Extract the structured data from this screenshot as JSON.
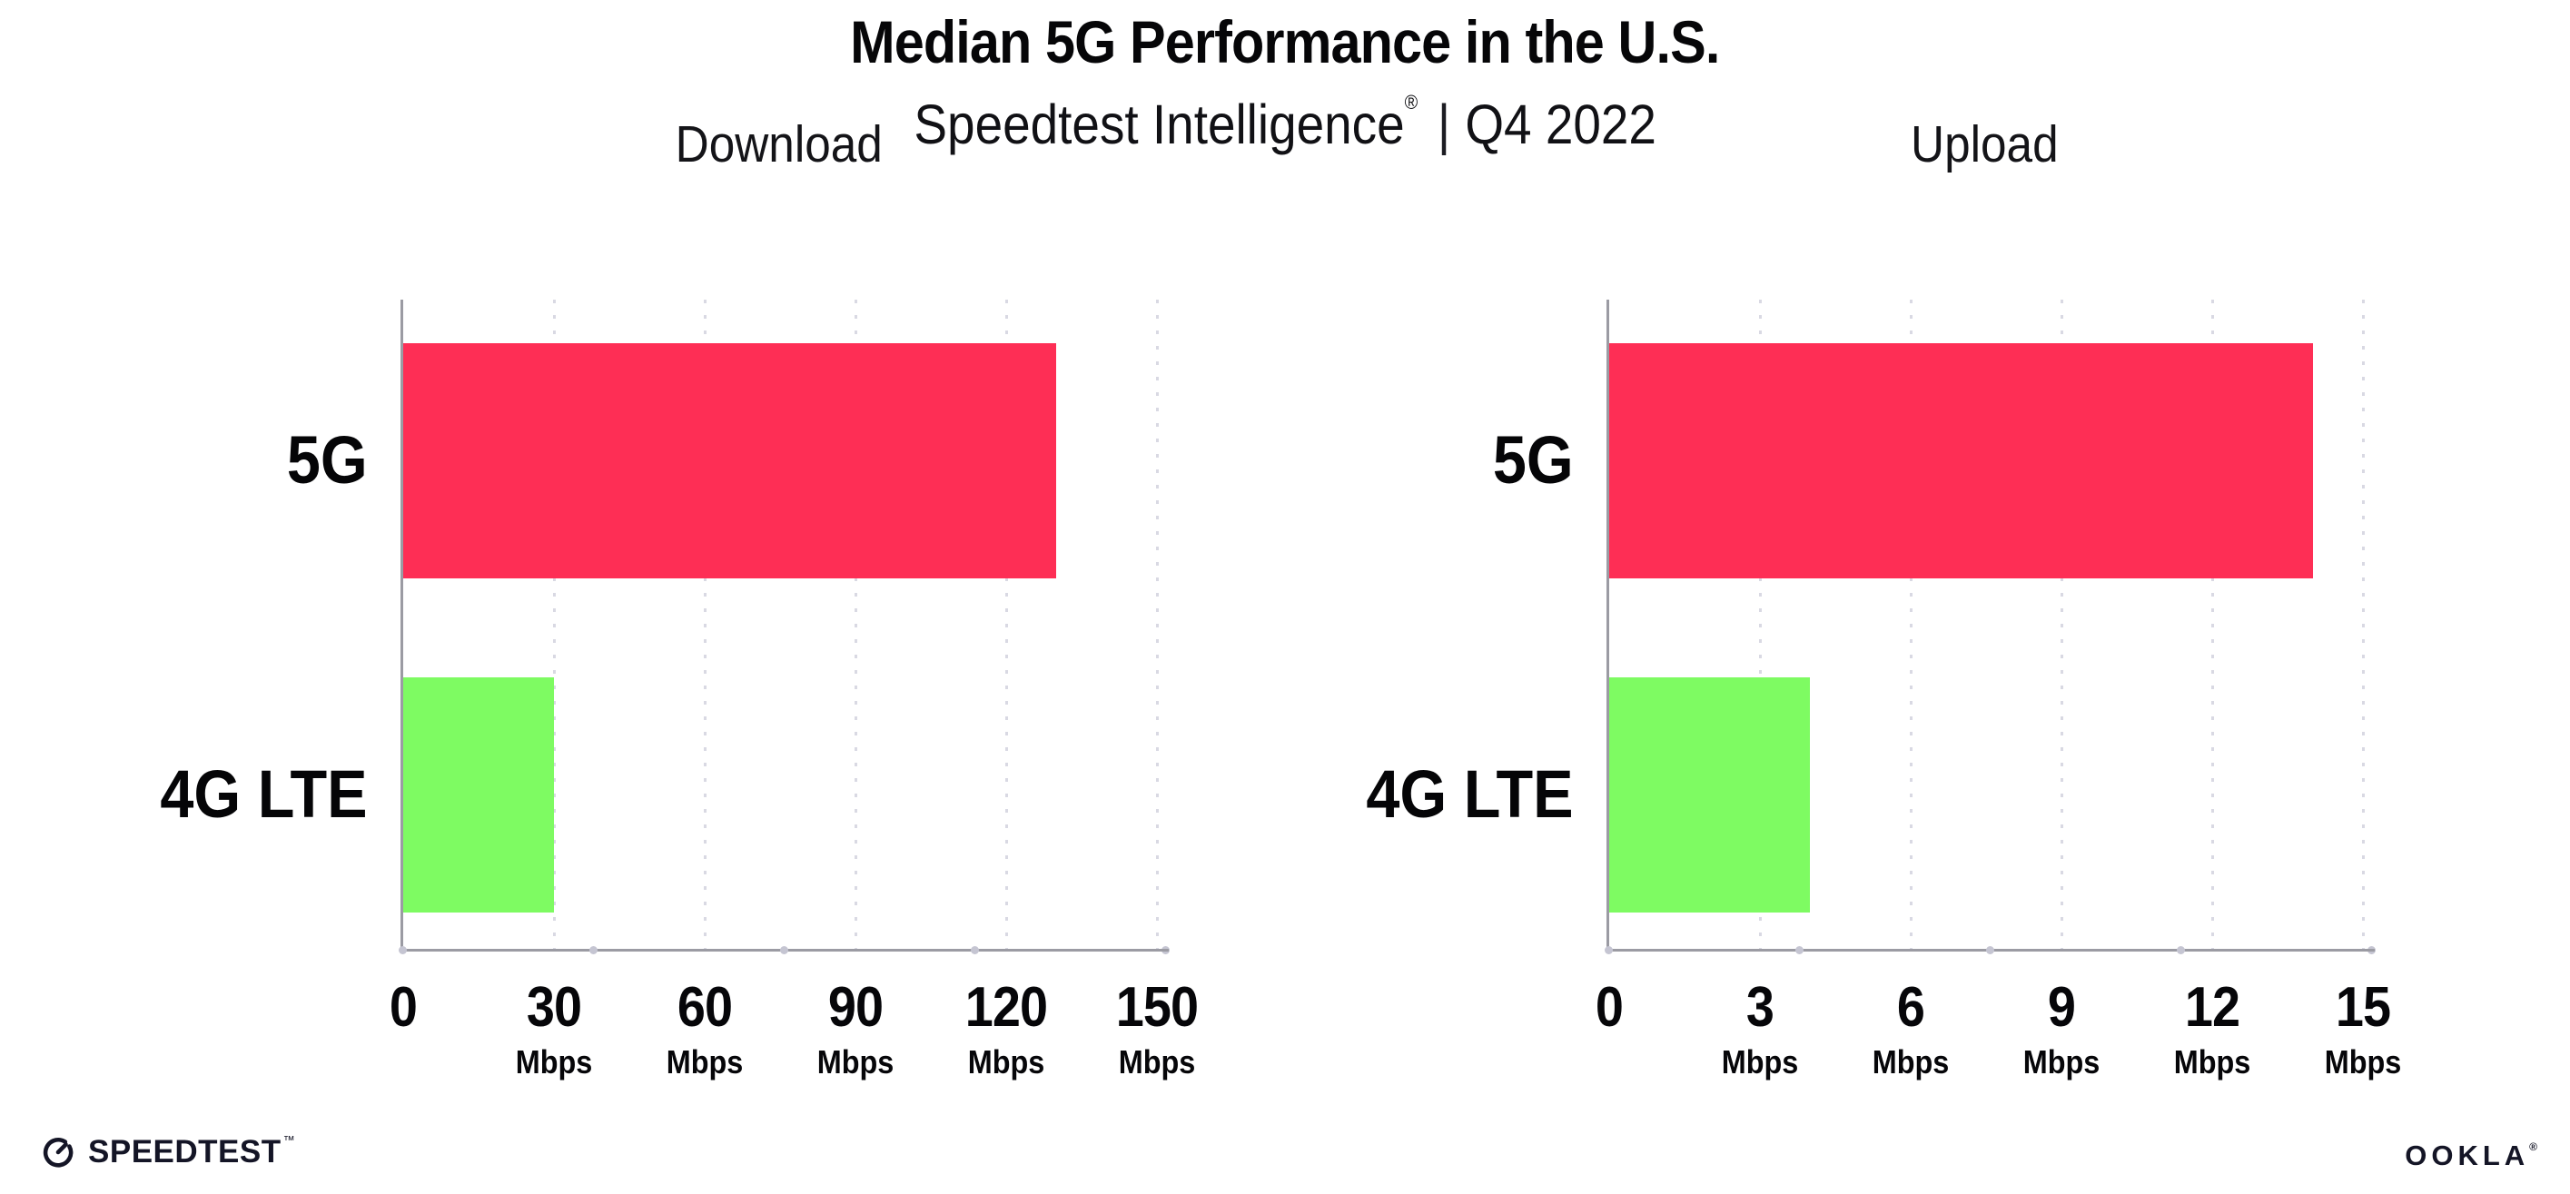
{
  "header": {
    "title": "Median 5G Performance in the U.S.",
    "subtitle": {
      "brand": "Speedtest Intelligence",
      "registered_mark": "®",
      "separator": "|",
      "period": "Q4 2022"
    }
  },
  "chart_data": [
    {
      "type": "bar",
      "orientation": "horizontal",
      "title": "Download",
      "categories": [
        "5G",
        "4G LTE"
      ],
      "values": [
        130,
        30
      ],
      "unit": "Mbps",
      "xlim": [
        0,
        150
      ],
      "xticks": [
        0,
        30,
        60,
        90,
        120,
        150
      ],
      "series_colors": [
        "#fe2e55",
        "#7efb62"
      ],
      "grid": "vertical-dotted",
      "legend_position": "none"
    },
    {
      "type": "bar",
      "orientation": "horizontal",
      "title": "Upload",
      "categories": [
        "5G",
        "4G LTE"
      ],
      "values": [
        14,
        4
      ],
      "unit": "Mbps",
      "xlim": [
        0,
        15
      ],
      "xticks": [
        0,
        3,
        6,
        9,
        12,
        15
      ],
      "series_colors": [
        "#fe2e55",
        "#7efb62"
      ],
      "grid": "vertical-dotted",
      "legend_position": "none"
    }
  ],
  "footer": {
    "speedtest_wordmark": "SPEEDTEST",
    "speedtest_trademark": "™",
    "ookla_wordmark": "OOKLA",
    "ookla_registered": "®"
  },
  "palette": {
    "bar_5g": "#fe2e55",
    "bar_4g_lte": "#7efb62",
    "axis_line": "#9b9ba3",
    "gridline_dots": "#d9d9e3",
    "axis_tick_dots": "#c5c5d2",
    "text": "#060608",
    "logo": "#141526"
  }
}
